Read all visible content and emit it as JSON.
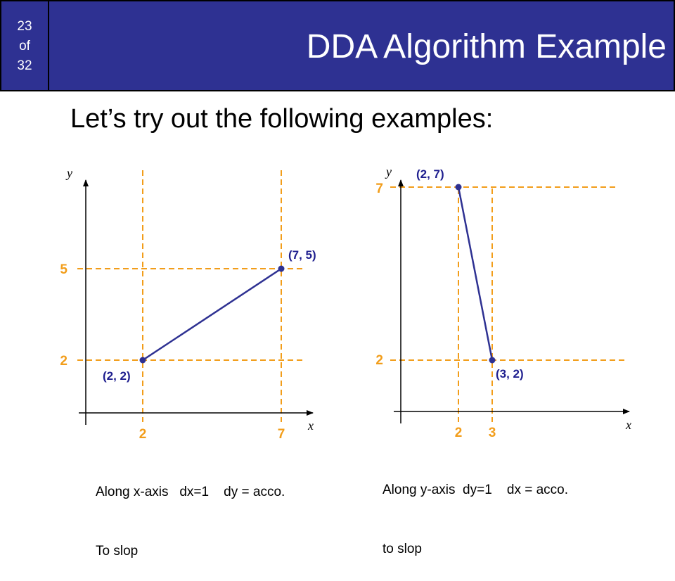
{
  "slide_counter": {
    "current": "23",
    "of": "of",
    "total": "32"
  },
  "title": "DDA Algorithm Example",
  "subtitle": "Let’s try out the following examples:",
  "colors": {
    "header": "#2e3192",
    "guide": "#f29d1a",
    "line": "#2e3192",
    "label": "#1f1f8f",
    "tick": "#f29d1a"
  },
  "diagrams": [
    {
      "x_axis_label": "x",
      "y_axis_label": "y",
      "x_ticks": [
        "2",
        "7"
      ],
      "y_ticks": [
        "5",
        "2"
      ],
      "start": {
        "x": 2,
        "y": 2,
        "label": "(2, 2)"
      },
      "end": {
        "x": 7,
        "y": 5,
        "label": "(7, 5)"
      },
      "caption_line1": "Along x-axis   dx=1    dy = acco.",
      "caption_line2": "To slop"
    },
    {
      "x_axis_label": "x",
      "y_axis_label": "y",
      "x_ticks": [
        "2",
        "3"
      ],
      "y_ticks": [
        "7",
        "2"
      ],
      "start": {
        "x": 2,
        "y": 7,
        "label": "(2, 7)"
      },
      "end": {
        "x": 3,
        "y": 2,
        "label": "(3, 2)"
      },
      "caption_line1": "Along y-axis  dy=1    dx = acco.",
      "caption_line2": "to slop"
    }
  ]
}
